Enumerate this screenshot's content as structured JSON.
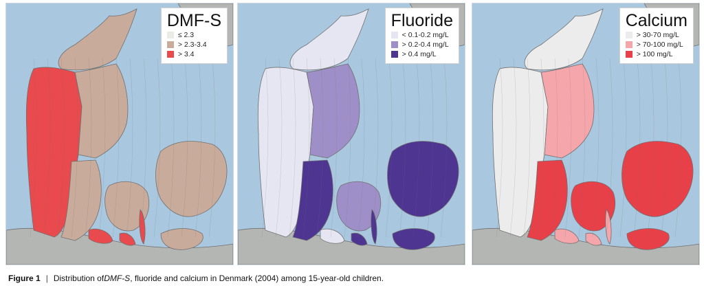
{
  "panels": [
    {
      "title": "DMF-S",
      "legend": [
        {
          "label": "≤ 2.3",
          "color": "#ebebe6"
        },
        {
          "label": "> 2.3-3.4",
          "color": "#c8ab9b"
        },
        {
          "label": "> 3.4",
          "color": "#e84a4e"
        }
      ],
      "region_colors": {
        "west": "#e84a4e",
        "north": "#c8ab9b",
        "east": "#c8ab9b",
        "funen": "#c8ab9b",
        "zealand": "#c8ab9b",
        "south": "#c8ab9b",
        "islands": "#e84a4e",
        "accent": "#e84a4e"
      }
    },
    {
      "title": "Fluoride",
      "legend": [
        {
          "label": "< 0.1-0.2 mg/L",
          "color": "#e6e6f3"
        },
        {
          "label": "> 0.2-0.4 mg/L",
          "color": "#9f8fc8"
        },
        {
          "label": "> 0.4 mg/L",
          "color": "#4e3591"
        }
      ],
      "region_colors": {
        "west": "#e6e6f3",
        "north": "#e6e6f3",
        "east": "#9f8fc8",
        "funen": "#9f8fc8",
        "zealand": "#4e3591",
        "south": "#4e3591",
        "islands": "#e6e6f3",
        "accent": "#4e3591"
      }
    },
    {
      "title": "Calcium",
      "legend": [
        {
          "label": "> 30-70 mg/L",
          "color": "#ececec"
        },
        {
          "label": "> 70-100 mg/L",
          "color": "#f4a6ab"
        },
        {
          "label": "> 100 mg/L",
          "color": "#e84048"
        }
      ],
      "region_colors": {
        "west": "#ececec",
        "north": "#ececec",
        "east": "#f4a6ab",
        "funen": "#e84048",
        "zealand": "#e84048",
        "south": "#e84048",
        "islands": "#f4a6ab",
        "accent": "#f4a6ab"
      }
    }
  ],
  "map_colors": {
    "sea": "#a9c7de",
    "land_outside": "#b4b6b4",
    "border": "#6f6f6f"
  },
  "caption": {
    "label": "Figure 1",
    "text_before": "Distribution of ",
    "emphasis": "DMF-S",
    "text_after": ", fluoride and calcium in Denmark (2004) among 15-year-old children."
  }
}
